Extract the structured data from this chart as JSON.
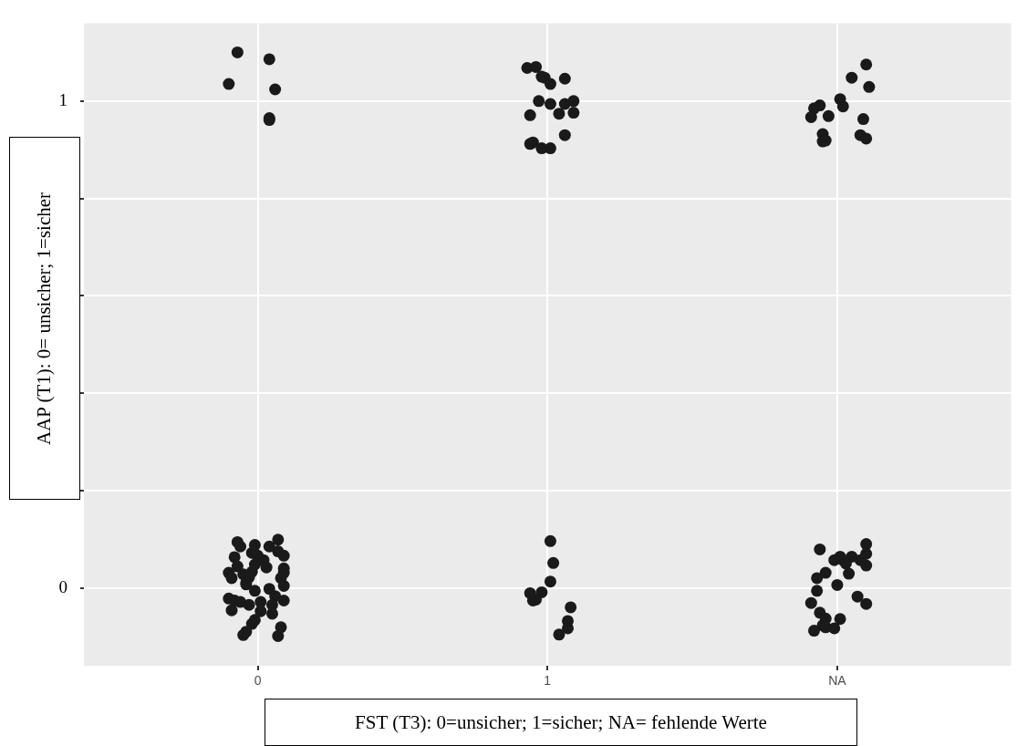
{
  "chart_data": {
    "type": "scatter",
    "xlabel": "FST (T3): 0=unsicher; 1=sicher; NA= fehlende Werte",
    "ylabel": "AAP (T1): 0= unsicher; 1=sicher",
    "xlim": [
      -0.6,
      2.6
    ],
    "ylim": [
      -0.16,
      1.16
    ],
    "xticks": [
      0,
      1,
      {
        "value": 2,
        "label": "NA"
      }
    ],
    "yticks": [
      0,
      {
        "value": 0.2,
        "label": null
      },
      {
        "value": 0.4,
        "label": null
      },
      {
        "value": 0.6,
        "label": null
      },
      {
        "value": 0.8,
        "label": null
      },
      1
    ],
    "grid": true,
    "marker": "circle",
    "series": [
      {
        "color": "#1a1a1a",
        "x": [
          -0.07,
          -0.1,
          0.04,
          0.06,
          0.04,
          0.04,
          0.93,
          0.96,
          0.98,
          0.99,
          1.01,
          1.06,
          0.97,
          1.01,
          1.06,
          1.09,
          0.94,
          1.04,
          1.09,
          1.06,
          0.95,
          0.94,
          0.98,
          1.01,
          2.1,
          2.05,
          2.11,
          2.01,
          2.02,
          1.94,
          1.92,
          1.91,
          1.97,
          2.09,
          1.95,
          1.95,
          1.96,
          2.08,
          2.1,
          -0.07,
          -0.06,
          -0.01,
          0.04,
          0.07,
          0.07,
          0.09,
          -0.02,
          0.0,
          -0.08,
          0.02,
          -0.07,
          -0.01,
          0.03,
          0.09,
          0.09,
          -0.1,
          -0.02,
          -0.05,
          -0.03,
          -0.09,
          0.08,
          -0.04,
          -0.04,
          0.09,
          0.04,
          -0.01,
          0.06,
          0.09,
          -0.1,
          -0.08,
          -0.06,
          -0.03,
          0.01,
          0.05,
          -0.09,
          0.01,
          0.05,
          -0.01,
          -0.02,
          -0.04,
          -0.05,
          0.08,
          0.07,
          1.01,
          1.02,
          1.01,
          0.98,
          0.94,
          0.95,
          0.96,
          1.08,
          1.07,
          1.07,
          1.04,
          1.94,
          2.1,
          2.1,
          2.08,
          2.1,
          2.05,
          2.01,
          1.99,
          2.02,
          2.03,
          1.96,
          2.04,
          1.93,
          2.0,
          1.93,
          2.07,
          2.1,
          1.91,
          1.94,
          1.96,
          2.01,
          1.95,
          1.96,
          1.99,
          1.92
        ],
        "values": [
          1.1,
          1.035,
          1.086,
          1.024,
          0.965,
          0.961,
          1.068,
          1.07,
          1.05,
          1.048,
          1.035,
          1.046,
          1.0,
          0.994,
          0.994,
          1.0,
          0.971,
          0.974,
          0.976,
          0.93,
          0.915,
          0.912,
          0.903,
          0.903,
          1.075,
          1.048,
          1.029,
          1.004,
          0.989,
          0.991,
          0.985,
          0.967,
          0.969,
          0.963,
          0.932,
          0.917,
          0.919,
          0.93,
          0.923,
          0.094,
          0.085,
          0.088,
          0.085,
          0.099,
          0.075,
          0.066,
          0.072,
          0.066,
          0.063,
          0.057,
          0.044,
          0.048,
          0.042,
          0.04,
          0.031,
          0.031,
          0.033,
          0.028,
          0.022,
          0.02,
          0.02,
          0.011,
          0.007,
          0.004,
          -0.002,
          -0.006,
          -0.017,
          -0.026,
          -0.022,
          -0.026,
          -0.029,
          -0.035,
          -0.029,
          -0.035,
          -0.046,
          -0.048,
          -0.053,
          -0.066,
          -0.074,
          -0.09,
          -0.097,
          -0.081,
          -0.099,
          0.096,
          0.051,
          0.013,
          -0.009,
          -0.011,
          -0.026,
          -0.024,
          -0.04,
          -0.068,
          -0.083,
          -0.096,
          0.079,
          0.09,
          0.07,
          0.057,
          0.046,
          0.064,
          0.064,
          0.057,
          0.057,
          0.05,
          0.031,
          0.029,
          0.02,
          0.006,
          -0.006,
          -0.018,
          -0.033,
          -0.031,
          -0.051,
          -0.063,
          -0.064,
          -0.077,
          -0.081,
          -0.083,
          -0.088
        ]
      }
    ]
  }
}
